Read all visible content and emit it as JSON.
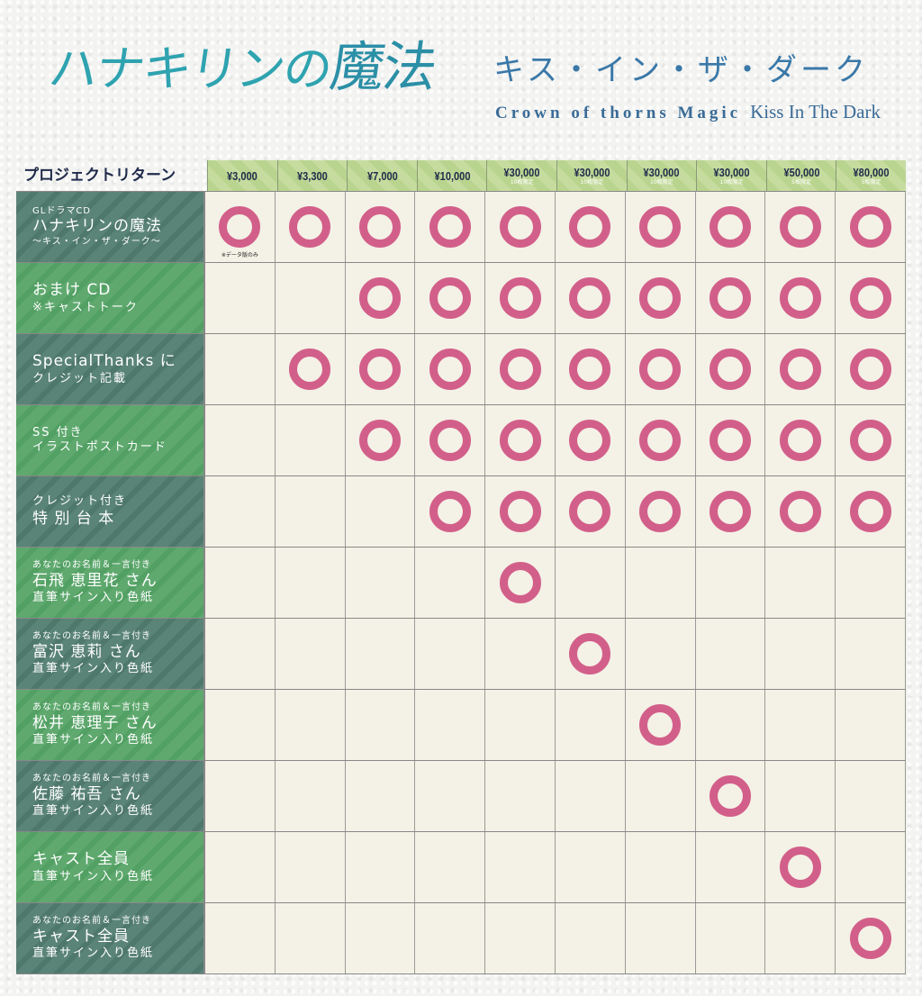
{
  "header": {
    "title_main": "ハナキリンの",
    "title_accent": "魔法",
    "subtitle_jp": "キス・イン・ザ・ダーク",
    "subtitle_en_a": "Crown of thorns Magic",
    "subtitle_en_b": "Kiss In The Dark"
  },
  "table": {
    "corner_label": "プロジェクトリターン",
    "columns": [
      {
        "price": "¥3,000",
        "limit": ""
      },
      {
        "price": "¥3,300",
        "limit": ""
      },
      {
        "price": "¥7,000",
        "limit": ""
      },
      {
        "price": "¥10,000",
        "limit": ""
      },
      {
        "price": "¥30,000",
        "limit": "10枚限定"
      },
      {
        "price": "¥30,000",
        "limit": "10枚限定"
      },
      {
        "price": "¥30,000",
        "limit": "10枚限定"
      },
      {
        "price": "¥30,000",
        "limit": "10枚限定"
      },
      {
        "price": "¥50,000",
        "limit": "5枚限定"
      },
      {
        "price": "¥80,000",
        "limit": "5枚限定"
      }
    ],
    "mark_color": "#d25f8a",
    "rows": [
      {
        "lines": [
          [
            "sm",
            "GLドラマCD"
          ],
          [
            "lg",
            "ハナキリンの魔法"
          ],
          [
            "sm",
            "〜キス・イン・ザ・ダーク〜"
          ]
        ],
        "tone": "dark",
        "included": [
          1,
          1,
          1,
          1,
          1,
          1,
          1,
          1,
          1,
          1
        ],
        "note": "※データ版のみ"
      },
      {
        "lines": [
          [
            "lg",
            "おまけ CD"
          ],
          [
            "md",
            "※キャストトーク"
          ]
        ],
        "tone": "green",
        "included": [
          0,
          0,
          1,
          1,
          1,
          1,
          1,
          1,
          1,
          1
        ]
      },
      {
        "lines": [
          [
            "lg",
            "SpecialThanks に"
          ],
          [
            "md",
            "クレジット記載"
          ]
        ],
        "tone": "dark",
        "included": [
          0,
          1,
          1,
          1,
          1,
          1,
          1,
          1,
          1,
          1
        ]
      },
      {
        "lines": [
          [
            "md",
            "SS 付き"
          ],
          [
            "md",
            "イラストポストカード"
          ]
        ],
        "tone": "green",
        "included": [
          0,
          0,
          1,
          1,
          1,
          1,
          1,
          1,
          1,
          1
        ]
      },
      {
        "lines": [
          [
            "md",
            "クレジット付き"
          ],
          [
            "lg",
            "特 別 台 本"
          ]
        ],
        "tone": "dark",
        "included": [
          0,
          0,
          0,
          1,
          1,
          1,
          1,
          1,
          1,
          1
        ]
      },
      {
        "lines": [
          [
            "sm",
            "あなたのお名前＆一言付き"
          ],
          [
            "lg",
            "石飛 恵里花 さん"
          ],
          [
            "md",
            "直筆サイン入り色紙"
          ]
        ],
        "tone": "green",
        "included": [
          0,
          0,
          0,
          0,
          1,
          0,
          0,
          0,
          0,
          0
        ]
      },
      {
        "lines": [
          [
            "sm",
            "あなたのお名前＆一言付き"
          ],
          [
            "lg",
            "富沢 恵莉 さん"
          ],
          [
            "md",
            "直筆サイン入り色紙"
          ]
        ],
        "tone": "dark",
        "included": [
          0,
          0,
          0,
          0,
          0,
          1,
          0,
          0,
          0,
          0
        ]
      },
      {
        "lines": [
          [
            "sm",
            "あなたのお名前＆一言付き"
          ],
          [
            "lg",
            "松井 恵理子 さん"
          ],
          [
            "md",
            "直筆サイン入り色紙"
          ]
        ],
        "tone": "green",
        "included": [
          0,
          0,
          0,
          0,
          0,
          0,
          1,
          0,
          0,
          0
        ]
      },
      {
        "lines": [
          [
            "sm",
            "あなたのお名前＆一言付き"
          ],
          [
            "lg",
            "佐藤 祐吾 さん"
          ],
          [
            "md",
            "直筆サイン入り色紙"
          ]
        ],
        "tone": "dark",
        "included": [
          0,
          0,
          0,
          0,
          0,
          0,
          0,
          1,
          0,
          0
        ]
      },
      {
        "lines": [
          [
            "lg",
            "キャスト全員"
          ],
          [
            "md",
            "直筆サイン入り色紙"
          ]
        ],
        "tone": "green",
        "included": [
          0,
          0,
          0,
          0,
          0,
          0,
          0,
          0,
          1,
          0
        ]
      },
      {
        "lines": [
          [
            "sm",
            "あなたのお名前＆一言付き"
          ],
          [
            "lg",
            "キャスト全員"
          ],
          [
            "md",
            "直筆サイン入り色紙"
          ]
        ],
        "tone": "dark",
        "included": [
          0,
          0,
          0,
          0,
          0,
          0,
          0,
          0,
          0,
          1
        ]
      }
    ]
  }
}
